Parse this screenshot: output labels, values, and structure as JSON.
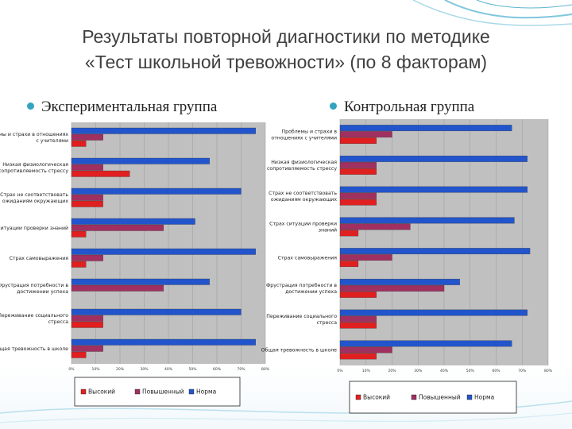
{
  "title_line1": "Результаты повторной диагностики по методике",
  "title_line2": "«Тест школьной тревожности» (по 8 факторам)",
  "bullets": {
    "left": "Экспериментальная группа",
    "right": "Контрольная группа"
  },
  "colors": {
    "high": "#e02020",
    "elevated": "#a03060",
    "norm": "#2255cc",
    "accent": "#33a3c0"
  },
  "chart_data": [
    {
      "type": "bar",
      "orientation": "horizontal",
      "categories": [
        "Проблемы и страхи в отношениях с учителями",
        "Низкая физиологическая сопротивляемость стрессу",
        "Страх не соответствовать ожиданиям окружающих",
        "Страх ситуации проверки знаний",
        "Страх самовыражения",
        "Фрустрация потребности в достижении успеха",
        "Переживание социального стресса",
        "Общая тревожность в школе"
      ],
      "series": [
        {
          "name": "Высокий",
          "color_key": "high",
          "values": [
            6,
            24,
            13,
            6,
            6,
            0,
            13,
            6
          ]
        },
        {
          "name": "Повышенный",
          "color_key": "elevated",
          "values": [
            13,
            13,
            13,
            38,
            13,
            38,
            13,
            13
          ]
        },
        {
          "name": "Норма",
          "color_key": "norm",
          "values": [
            76,
            57,
            70,
            51,
            76,
            57,
            70,
            76
          ]
        }
      ],
      "xlim": [
        0,
        80
      ],
      "xticks": [
        "0%",
        "10%",
        "20%",
        "30%",
        "40%",
        "50%",
        "60%",
        "70%",
        "80%"
      ]
    },
    {
      "type": "bar",
      "orientation": "horizontal",
      "categories": [
        "Проблемы и страхи в отношениях с учителями",
        "Низкая физиологическая сопротивляемость стрессу",
        "Страх не соответствовать ожиданиям окружающих",
        "Страх ситуации проверки знаний",
        "Страх самовыражения",
        "Фрустрация потребности в достижении успеха",
        "Переживание социального стресса",
        "Общая тревожность в школе"
      ],
      "series": [
        {
          "name": "Высокий",
          "color_key": "high",
          "values": [
            14,
            14,
            14,
            7,
            7,
            14,
            14,
            14
          ]
        },
        {
          "name": "Повышенный",
          "color_key": "elevated",
          "values": [
            20,
            14,
            14,
            27,
            20,
            40,
            14,
            20
          ]
        },
        {
          "name": "Норма",
          "color_key": "norm",
          "values": [
            66,
            72,
            72,
            67,
            73,
            46,
            72,
            66
          ]
        }
      ],
      "xlim": [
        0,
        80
      ],
      "xticks": [
        "0%",
        "10%",
        "20%",
        "30%",
        "40%",
        "50%",
        "60%",
        "70%",
        "80%"
      ]
    }
  ],
  "legend": [
    "Высокий",
    "Повышенный",
    "Норма"
  ]
}
